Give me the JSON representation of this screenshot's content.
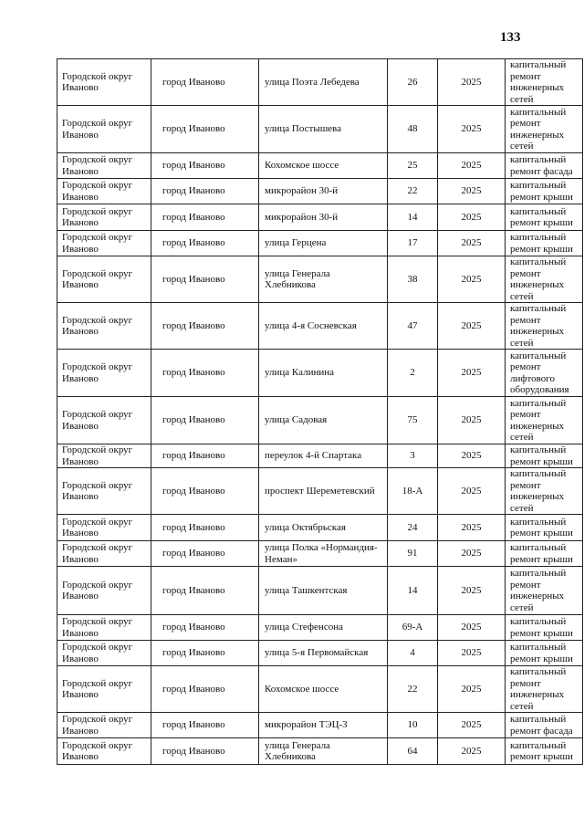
{
  "page_number": "133",
  "rows": [
    {
      "district": "Городской округ Иваново",
      "city": "город Иваново",
      "street": "улица Поэта Лебедева",
      "house": "26",
      "year": "2025",
      "work": "капитальный ремонт инженерных сетей"
    },
    {
      "district": "Городской округ Иваново",
      "city": "город Иваново",
      "street": "улица Постышева",
      "house": "48",
      "year": "2025",
      "work": "капитальный ремонт инженерных сетей"
    },
    {
      "district": "Городской округ Иваново",
      "city": "город Иваново",
      "street": "Кохомское шоссе",
      "house": "25",
      "year": "2025",
      "work": "капитальный ремонт фасада"
    },
    {
      "district": "Городской округ Иваново",
      "city": "город Иваново",
      "street": "микрорайон 30-й",
      "house": "22",
      "year": "2025",
      "work": "капитальный ремонт крыши"
    },
    {
      "district": "Городской округ Иваново",
      "city": "город Иваново",
      "street": "микрорайон 30-й",
      "house": "14",
      "year": "2025",
      "work": "капитальный ремонт крыши"
    },
    {
      "district": "Городской округ Иваново",
      "city": "город Иваново",
      "street": "улица Герцена",
      "house": "17",
      "year": "2025",
      "work": "капитальный ремонт крыши"
    },
    {
      "district": "Городской округ Иваново",
      "city": "город Иваново",
      "street": "улица Генерала Хлебникова",
      "house": "38",
      "year": "2025",
      "work": "капитальный ремонт инженерных сетей"
    },
    {
      "district": "Городской округ Иваново",
      "city": "город Иваново",
      "street": "улица 4-я Сосневская",
      "house": "47",
      "year": "2025",
      "work": "капитальный ремонт инженерных сетей"
    },
    {
      "district": "Городской округ Иваново",
      "city": "город Иваново",
      "street": "улица Калинина",
      "house": "2",
      "year": "2025",
      "work": "капитальный ремонт лифтового оборудования"
    },
    {
      "district": "Городской округ Иваново",
      "city": "город Иваново",
      "street": "улица Садовая",
      "house": "75",
      "year": "2025",
      "work": "капитальный ремонт инженерных сетей"
    },
    {
      "district": "Городской округ Иваново",
      "city": "город Иваново",
      "street": "переулок 4-й Спартака",
      "house": "3",
      "year": "2025",
      "work": "капитальный ремонт крыши"
    },
    {
      "district": "Городской округ Иваново",
      "city": "город Иваново",
      "street": "проспект Шереметевский",
      "house": "18-А",
      "year": "2025",
      "work": "капитальный ремонт инженерных сетей"
    },
    {
      "district": "Городской округ Иваново",
      "city": "город Иваново",
      "street": "улица Октябрьская",
      "house": "24",
      "year": "2025",
      "work": "капитальный ремонт крыши"
    },
    {
      "district": "Городской округ Иваново",
      "city": "город Иваново",
      "street": "улица Полка «Нормандия-Неман»",
      "house": "91",
      "year": "2025",
      "work": "капитальный ремонт крыши"
    },
    {
      "district": "Городской округ Иваново",
      "city": "город Иваново",
      "street": "улица Ташкентская",
      "house": "14",
      "year": "2025",
      "work": "капитальный ремонт инженерных сетей"
    },
    {
      "district": "Городской округ Иваново",
      "city": "город Иваново",
      "street": "улица Стефенсона",
      "house": "69-А",
      "year": "2025",
      "work": "капитальный ремонт крыши"
    },
    {
      "district": "Городской округ Иваново",
      "city": "город Иваново",
      "street": "улица 5-я Первомайская",
      "house": "4",
      "year": "2025",
      "work": "капитальный ремонт крыши"
    },
    {
      "district": "Городской округ Иваново",
      "city": "город Иваново",
      "street": "Кохомское шоссе",
      "house": "22",
      "year": "2025",
      "work": "капитальный ремонт инженерных сетей"
    },
    {
      "district": "Городской округ Иваново",
      "city": "город Иваново",
      "street": "микрорайон ТЭЦ-3",
      "house": "10",
      "year": "2025",
      "work": "капитальный ремонт фасада"
    },
    {
      "district": "Городской округ Иваново",
      "city": "город Иваново",
      "street": "улица Генерала Хлебникова",
      "house": "64",
      "year": "2025",
      "work": "капитальный ремонт крыши"
    }
  ]
}
